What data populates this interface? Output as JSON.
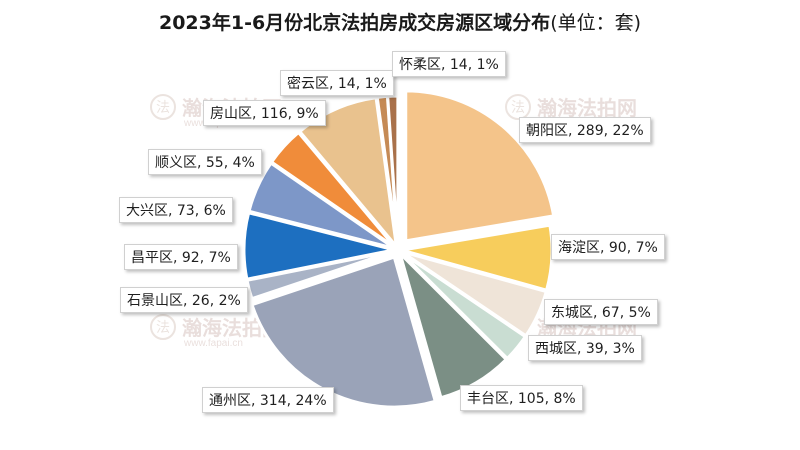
{
  "title": {
    "main": "2023年1-6月份北京法拍房成交房源区域分布",
    "unit": "(单位：套)"
  },
  "watermark": {
    "text": "瀚海法拍网",
    "url": "www.fapai.cn",
    "badge": "法"
  },
  "chart_data": {
    "type": "pie",
    "title": "2023年1-6月份北京法拍房成交房源区域分布(单位：套)",
    "slices": [
      {
        "name": "朝阳区",
        "value": 289,
        "percent": "22%",
        "label": "朝阳区, 289, 22%",
        "color": "#f4c48a"
      },
      {
        "name": "海淀区",
        "value": 90,
        "percent": "7%",
        "label": "海淀区, 90, 7%",
        "color": "#f7cd5c"
      },
      {
        "name": "东城区",
        "value": 67,
        "percent": "5%",
        "label": "东城区, 67, 5%",
        "color": "#efe4d8"
      },
      {
        "name": "西城区",
        "value": 39,
        "percent": "3%",
        "label": "西城区, 39, 3%",
        "color": "#c9ddd2"
      },
      {
        "name": "丰台区",
        "value": 105,
        "percent": "8%",
        "label": "丰台区, 105, 8%",
        "color": "#7b8f85"
      },
      {
        "name": "通州区",
        "value": 314,
        "percent": "24%",
        "label": "通州区, 314, 24%",
        "color": "#9aa3b8"
      },
      {
        "name": "石景山区",
        "value": 26,
        "percent": "2%",
        "label": "石景山区, 26, 2%",
        "color": "#a9b3c6"
      },
      {
        "name": "昌平区",
        "value": 92,
        "percent": "7%",
        "label": "昌平区, 92, 7%",
        "color": "#1d6fc0"
      },
      {
        "name": "大兴区",
        "value": 73,
        "percent": "6%",
        "label": "大兴区, 73, 6%",
        "color": "#7d97c8"
      },
      {
        "name": "顺义区",
        "value": 55,
        "percent": "4%",
        "label": "顺义区, 55, 4%",
        "color": "#f08c3a"
      },
      {
        "name": "房山区",
        "value": 116,
        "percent": "9%",
        "label": "房山区, 116, 9%",
        "color": "#e9c28e"
      },
      {
        "name": "密云区",
        "value": 14,
        "percent": "1%",
        "label": "密云区, 14, 1%",
        "color": "#c58a55"
      },
      {
        "name": "怀柔区",
        "value": 14,
        "percent": "1%",
        "label": "怀柔区, 14, 1%",
        "color": "#a9714a"
      }
    ]
  }
}
